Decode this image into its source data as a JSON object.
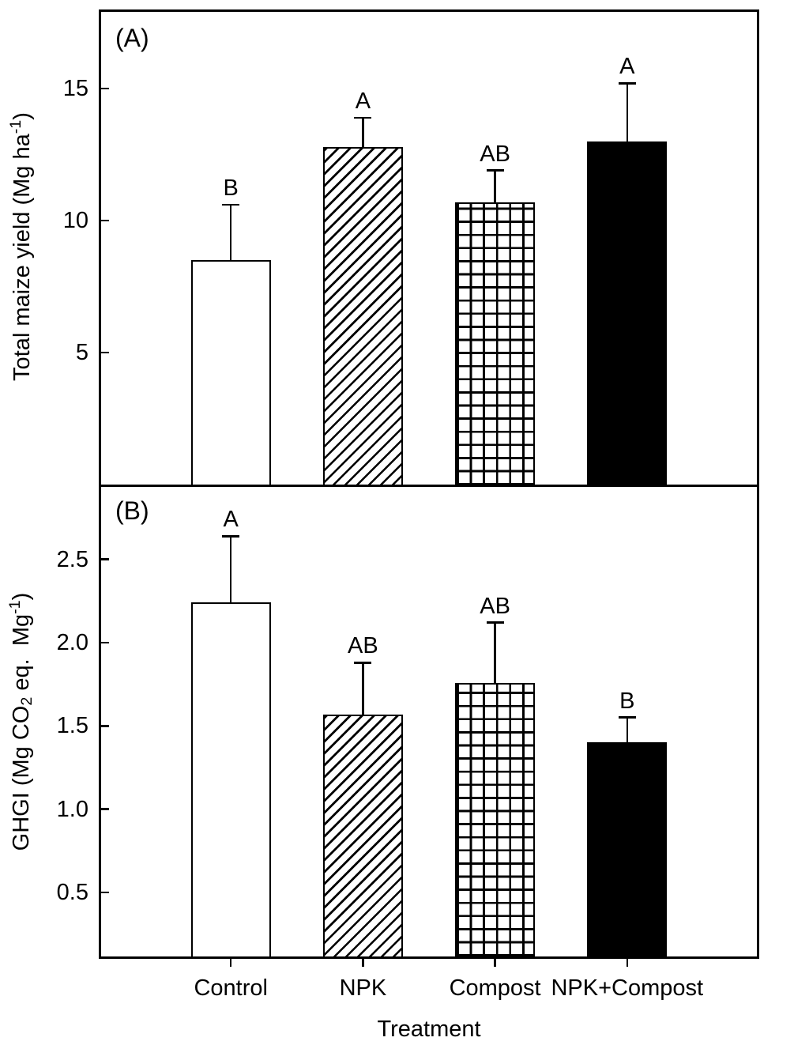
{
  "colors": {
    "foreground": "#000000",
    "background": "#ffffff"
  },
  "chart_data": [
    {
      "type": "bar",
      "panel_label": "(A)",
      "categories": [
        "Control",
        "NPK",
        "Compost",
        "NPK+Compost"
      ],
      "values": [
        8.5,
        12.8,
        10.7,
        13.0
      ],
      "errors": [
        2.1,
        1.1,
        1.2,
        2.2
      ],
      "error_direction": "up",
      "sig_letters": [
        "B",
        "A",
        "AB",
        "A"
      ],
      "bar_styles": [
        "white",
        "diagonal-hatch",
        "crosshatch-grid",
        "solid-black"
      ],
      "title": "",
      "xlabel": "",
      "ylabel": "Total maize yield (Mg ha⁻¹)",
      "ylabel_parts": {
        "pre": "Total maize yield (Mg ha",
        "sup": "-1",
        "post": ")"
      },
      "ylim": [
        0,
        18
      ],
      "yticks": [
        5,
        10,
        15
      ],
      "ytick_labels": [
        "5",
        "10",
        "15"
      ],
      "grid": false,
      "legend": "none"
    },
    {
      "type": "bar",
      "panel_label": "(B)",
      "categories": [
        "Control",
        "NPK",
        "Compost",
        "NPK+Compost"
      ],
      "values": [
        2.24,
        1.57,
        1.76,
        1.4
      ],
      "errors": [
        0.4,
        0.31,
        0.36,
        0.15
      ],
      "error_direction": "up",
      "sig_letters": [
        "A",
        "AB",
        "AB",
        "B"
      ],
      "bar_styles": [
        "white",
        "diagonal-hatch",
        "crosshatch-grid",
        "solid-black"
      ],
      "title": "",
      "xlabel": "Treatment",
      "ylabel": "GHGI (Mg CO₂ eq.  Mg⁻¹)",
      "ylabel_parts": {
        "pre": "GHGI (Mg CO",
        "sub": "2",
        "mid": " eq.  Mg",
        "sup": "-1",
        "post": ")"
      },
      "ylim": [
        0.1,
        2.95
      ],
      "yticks": [
        0.5,
        1.0,
        1.5,
        2.0,
        2.5
      ],
      "ytick_labels": [
        "0.5",
        "1.0",
        "1.5",
        "2.0",
        "2.5"
      ],
      "grid": false,
      "legend": "none"
    }
  ]
}
